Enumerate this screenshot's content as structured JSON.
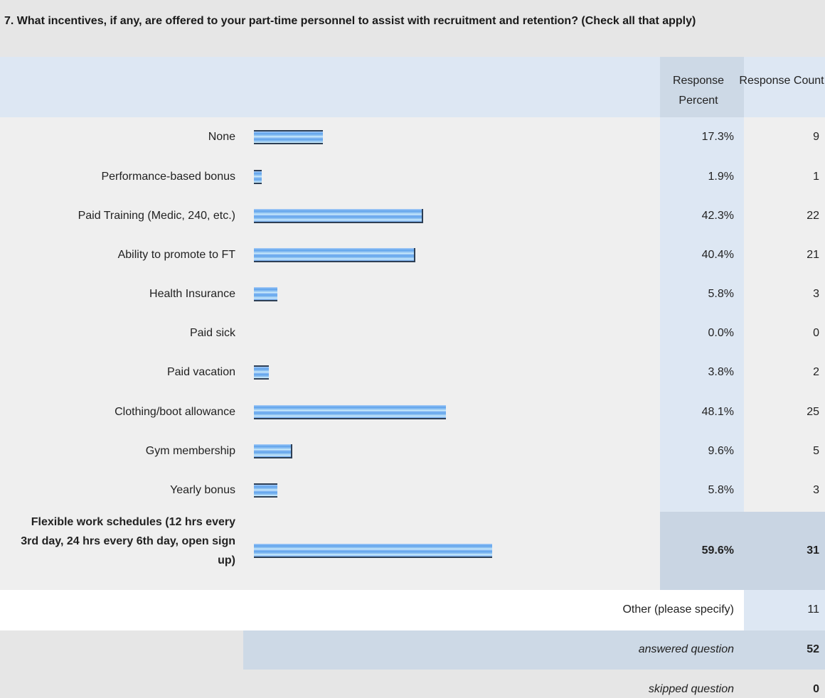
{
  "question": "7. What incentives, if any, are offered to your part-time personnel to assist with recruitment and retention? (Check all that apply)",
  "headers": {
    "response_percent": "Response Percent",
    "response_count": "Response Count"
  },
  "chart_data": {
    "type": "bar",
    "orientation": "horizontal",
    "title": "",
    "xlabel": "",
    "ylabel": "",
    "xlim": [
      0,
      100
    ],
    "grid": false,
    "categories": [
      "None",
      "Performance-based bonus",
      "Paid Training (Medic, 240, etc.)",
      "Ability to promote to FT",
      "Health Insurance",
      "Paid sick",
      "Paid vacation",
      "Clothing/boot allowance",
      "Gym membership",
      "Yearly bonus",
      "Flexible work schedules (12 hrs every 3rd day, 24 hrs every 6th day, open sign up)"
    ],
    "values": [
      17.3,
      1.9,
      42.3,
      40.4,
      5.8,
      0.0,
      3.8,
      48.1,
      9.6,
      5.8,
      59.6
    ],
    "percent_labels": [
      "17.3%",
      "1.9%",
      "42.3%",
      "40.4%",
      "5.8%",
      "0.0%",
      "3.8%",
      "48.1%",
      "9.6%",
      "5.8%",
      "59.6%"
    ],
    "counts": [
      "9",
      "1",
      "22",
      "21",
      "3",
      "0",
      "2",
      "25",
      "5",
      "3",
      "31"
    ]
  },
  "other": {
    "label": "Other (please specify)",
    "count": "11"
  },
  "summary": {
    "answered_label": "answered question",
    "answered_value": "52",
    "skipped_label": "skipped question",
    "skipped_value": "0"
  },
  "colors": {
    "bar_light": "#a8cdf7",
    "bar_mid": "#5ea2ec",
    "bar_cap": "#2e3f55",
    "header_bg": "#dde7f3",
    "row_bg": "#efefef",
    "highlight_bg": "#c9d5e3"
  }
}
